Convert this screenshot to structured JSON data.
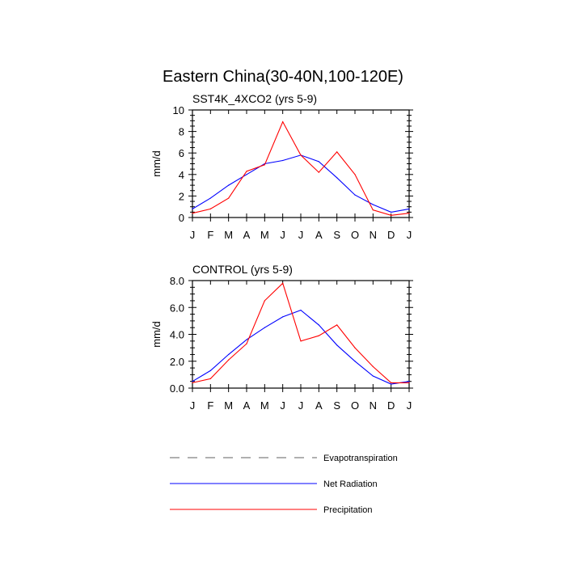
{
  "title": "Eastern China(30-40N,100-120E)",
  "legend": {
    "entries": [
      {
        "name": "Evapotranspiration",
        "color": "#808080",
        "style": "dashed"
      },
      {
        "name": "Net Radiation",
        "color": "#0000ff",
        "style": "solid"
      },
      {
        "name": "Precipitation",
        "color": "#ff0000",
        "style": "solid"
      }
    ]
  },
  "chart_data": [
    {
      "type": "line",
      "title": "SST4K_4XCO2 (yrs 5-9)",
      "ylabel": "mm/d",
      "xlabel": "",
      "categories": [
        "J",
        "F",
        "M",
        "A",
        "M",
        "J",
        "J",
        "A",
        "S",
        "O",
        "N",
        "D",
        "J"
      ],
      "ylim": [
        0,
        10
      ],
      "yticks": [
        0,
        2,
        4,
        6,
        8,
        10
      ],
      "ytick_labels": [
        "0",
        "2",
        "4",
        "6",
        "8",
        "10"
      ],
      "series": [
        {
          "name": "Net Radiation",
          "color": "#0000ff",
          "values": [
            0.8,
            1.8,
            3.0,
            4.0,
            5.0,
            5.3,
            5.8,
            5.2,
            3.7,
            2.1,
            1.2,
            0.5,
            0.8
          ]
        },
        {
          "name": "Precipitation",
          "color": "#ff0000",
          "values": [
            0.4,
            0.8,
            1.8,
            4.3,
            4.9,
            8.9,
            5.8,
            4.2,
            6.1,
            4.0,
            0.7,
            0.2,
            0.4
          ]
        }
      ]
    },
    {
      "type": "line",
      "title": "CONTROL (yrs 5-9)",
      "ylabel": "mm/d",
      "xlabel": "",
      "categories": [
        "J",
        "F",
        "M",
        "A",
        "M",
        "J",
        "J",
        "A",
        "S",
        "O",
        "N",
        "D",
        "J"
      ],
      "ylim": [
        0,
        8
      ],
      "yticks": [
        0,
        2,
        4,
        6,
        8
      ],
      "ytick_labels": [
        "0.0",
        "2.0",
        "4.0",
        "6.0",
        "8.0"
      ],
      "series": [
        {
          "name": "Net Radiation",
          "color": "#0000ff",
          "values": [
            0.5,
            1.3,
            2.5,
            3.6,
            4.5,
            5.3,
            5.8,
            4.7,
            3.2,
            2.0,
            0.9,
            0.3,
            0.5
          ]
        },
        {
          "name": "Precipitation",
          "color": "#ff0000",
          "values": [
            0.4,
            0.7,
            2.1,
            3.3,
            6.5,
            7.8,
            3.5,
            3.9,
            4.7,
            3.0,
            1.6,
            0.4,
            0.4
          ]
        }
      ]
    }
  ]
}
